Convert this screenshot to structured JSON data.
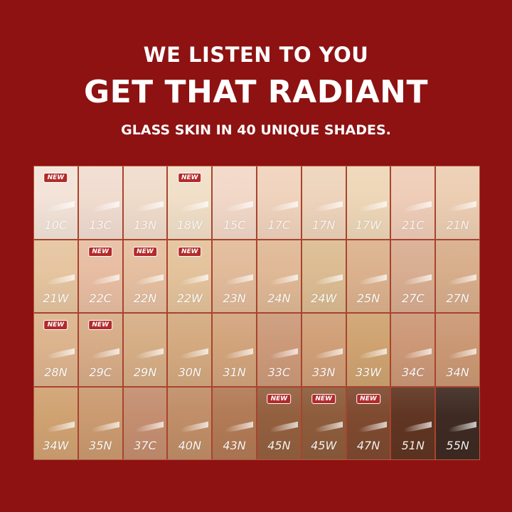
{
  "header": {
    "line1": "WE LISTEN TO YOU",
    "line2": "GET THAT RADIANT",
    "line3": "GLASS SKIN IN 40 UNIQUE SHADES."
  },
  "new_badge": "NEW",
  "colors": {
    "background": "#8e1212",
    "badge": "#b32a2a"
  },
  "shades": [
    {
      "name": "10C",
      "color": "#f3e3d8",
      "new": true
    },
    {
      "name": "13C",
      "color": "#f1dcd0",
      "new": false
    },
    {
      "name": "13N",
      "color": "#f0dccb",
      "new": false
    },
    {
      "name": "18W",
      "color": "#f1dfc8",
      "new": true
    },
    {
      "name": "15C",
      "color": "#f2d8c8",
      "new": false
    },
    {
      "name": "17C",
      "color": "#f0d3bd",
      "new": false
    },
    {
      "name": "17N",
      "color": "#eed4bb",
      "new": false
    },
    {
      "name": "17W",
      "color": "#eed7b8",
      "new": false
    },
    {
      "name": "21C",
      "color": "#efcdb8",
      "new": false
    },
    {
      "name": "21N",
      "color": "#ecceb3",
      "new": false
    },
    {
      "name": "21W",
      "color": "#e6c5a0",
      "new": false
    },
    {
      "name": "22C",
      "color": "#e8bea3",
      "new": true
    },
    {
      "name": "22N",
      "color": "#e6bfa0",
      "new": true
    },
    {
      "name": "22W",
      "color": "#e4c39c",
      "new": true
    },
    {
      "name": "23N",
      "color": "#e2bb9a",
      "new": false
    },
    {
      "name": "24N",
      "color": "#e0b996",
      "new": false
    },
    {
      "name": "24W",
      "color": "#dcbc92",
      "new": false
    },
    {
      "name": "25N",
      "color": "#dcb28e",
      "new": false
    },
    {
      "name": "27C",
      "color": "#d9ae92",
      "new": false
    },
    {
      "name": "27N",
      "color": "#d8ae8c",
      "new": false
    },
    {
      "name": "28N",
      "color": "#dcb48e",
      "new": true
    },
    {
      "name": "29C",
      "color": "#d7ac88",
      "new": true
    },
    {
      "name": "29N",
      "color": "#d6ae86",
      "new": false
    },
    {
      "name": "30N",
      "color": "#d4aa80",
      "new": false
    },
    {
      "name": "31N",
      "color": "#d2a47c",
      "new": false
    },
    {
      "name": "33C",
      "color": "#cc9a7a",
      "new": false
    },
    {
      "name": "33N",
      "color": "#d09f78",
      "new": false
    },
    {
      "name": "33W",
      "color": "#cfa371",
      "new": false
    },
    {
      "name": "34C",
      "color": "#cc9878",
      "new": false
    },
    {
      "name": "34N",
      "color": "#cb9874",
      "new": false
    },
    {
      "name": "34W",
      "color": "#d0a272",
      "new": false
    },
    {
      "name": "35N",
      "color": "#cb9a70",
      "new": false
    },
    {
      "name": "37C",
      "color": "#c48e70",
      "new": false
    },
    {
      "name": "40N",
      "color": "#c08e68",
      "new": false
    },
    {
      "name": "43N",
      "color": "#b27a56",
      "new": false
    },
    {
      "name": "45N",
      "color": "#93603f",
      "new": true
    },
    {
      "name": "45W",
      "color": "#8d5c3c",
      "new": true
    },
    {
      "name": "47N",
      "color": "#7e4a30",
      "new": true
    },
    {
      "name": "51N",
      "color": "#603522",
      "new": false
    },
    {
      "name": "55N",
      "color": "#3e2a22",
      "new": false
    }
  ]
}
